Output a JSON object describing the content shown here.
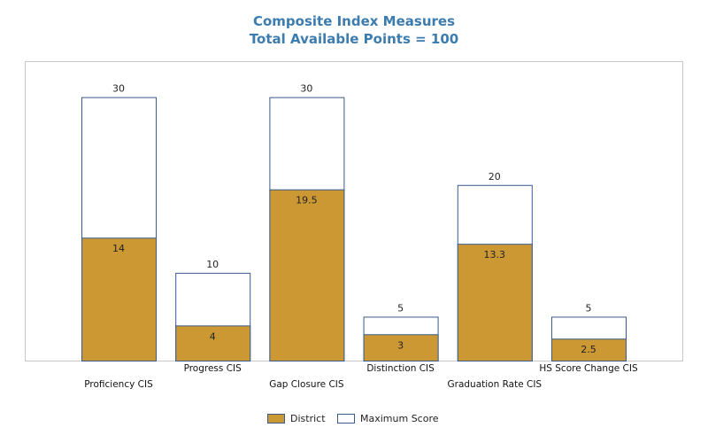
{
  "title": "Composite Index Measures",
  "subtitle": "Total Available Points = 100",
  "colors": {
    "district": "#cb9833",
    "maximum": "#ffffff",
    "outline": "#3a5a8a",
    "title": "#3c7cae"
  },
  "chart_data": {
    "type": "bar",
    "title": "Composite Index Measures",
    "subtitle": "Total Available Points = 100",
    "categories": [
      "Proficiency CIS",
      "Progress CIS",
      "Gap Closure CIS",
      "Distinction CIS",
      "Graduation Rate CIS",
      "HS Score Change CIS"
    ],
    "series": [
      {
        "name": "District",
        "values": [
          14,
          4,
          19.5,
          3,
          13.3,
          2.5
        ]
      },
      {
        "name": "Maximum Score",
        "values": [
          30,
          10,
          30,
          5,
          20,
          5
        ]
      }
    ],
    "ylim": [
      0,
      34
    ],
    "grid": false,
    "legend_position": "bottom"
  }
}
